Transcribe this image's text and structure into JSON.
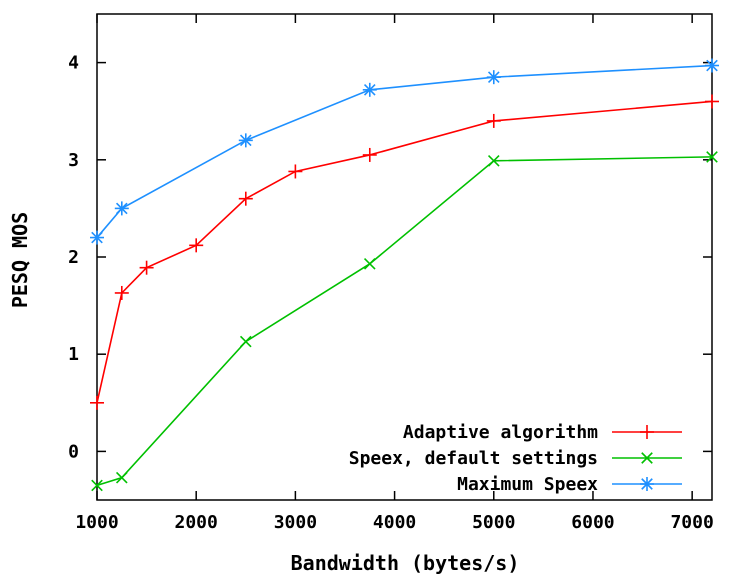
{
  "chart_data": {
    "type": "line",
    "title": "",
    "xlabel": "Bandwidth (bytes/s)",
    "ylabel": "PESQ MOS",
    "xlim": [
      1000,
      7200
    ],
    "ylim": [
      -0.5,
      4.5
    ],
    "xticks": [
      1000,
      2000,
      3000,
      4000,
      5000,
      6000,
      7000
    ],
    "yticks": [
      0,
      1,
      2,
      3,
      4
    ],
    "xtick_labels": [
      "1000",
      "2000",
      "3000",
      "4000",
      "5000",
      "6000",
      "7000"
    ],
    "ytick_labels": [
      "0",
      "1",
      "2",
      "3",
      "4"
    ],
    "grid": false,
    "legend_position": "bottom-right",
    "series": [
      {
        "name": "Adaptive algorithm",
        "color": "#ff0000",
        "marker": "plus",
        "x": [
          1000,
          1250,
          1500,
          2000,
          2500,
          3000,
          3750,
          5000,
          7200
        ],
        "y": [
          0.5,
          1.63,
          1.89,
          2.12,
          2.6,
          2.88,
          3.05,
          3.4,
          3.6
        ]
      },
      {
        "name": "Speex, default settings",
        "color": "#00c000",
        "marker": "cross",
        "x": [
          1000,
          1250,
          2500,
          3750,
          5000,
          7200
        ],
        "y": [
          -0.35,
          -0.27,
          1.13,
          1.93,
          2.99,
          3.03
        ]
      },
      {
        "name": "Maximum Speex",
        "color": "#1e90ff",
        "marker": "star",
        "x": [
          1000,
          1250,
          2500,
          3750,
          5000,
          7200
        ],
        "y": [
          2.2,
          2.5,
          3.2,
          3.72,
          3.85,
          3.97
        ]
      }
    ]
  }
}
